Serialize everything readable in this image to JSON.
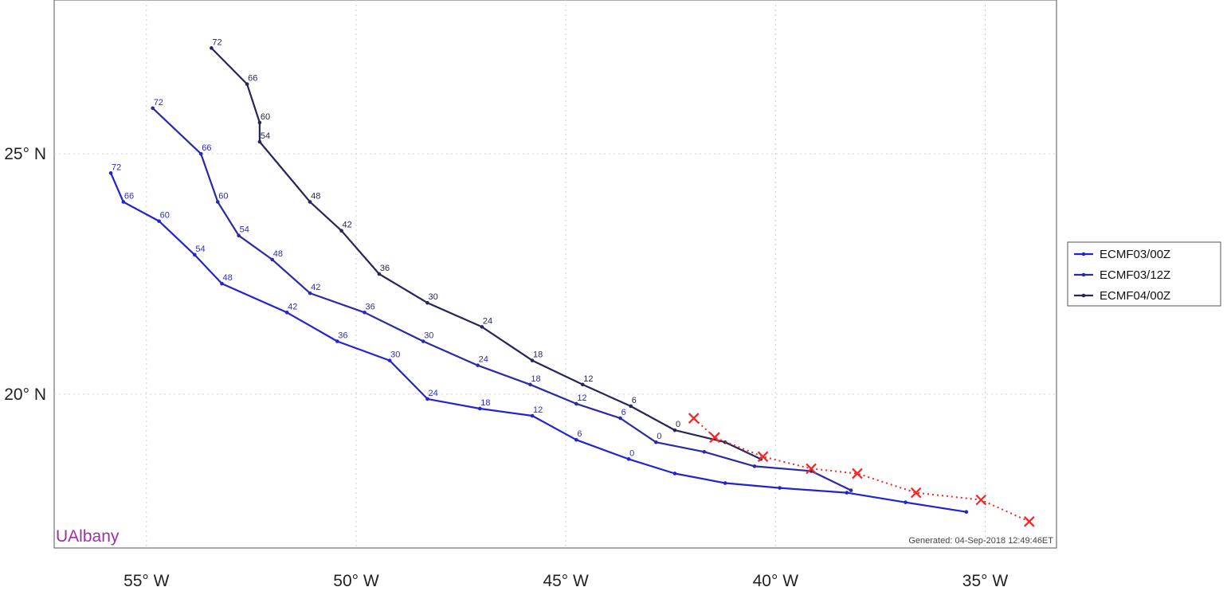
{
  "map": {
    "lon_range": [
      -57.2,
      -33.3
    ],
    "lat_range": [
      16.8,
      28.2
    ],
    "x_ticks": [
      {
        "value": -55,
        "label": "55° W"
      },
      {
        "value": -50,
        "label": "50° W"
      },
      {
        "value": -45,
        "label": "45° W"
      },
      {
        "value": -40,
        "label": "40° W"
      },
      {
        "value": -35,
        "label": "35° W"
      }
    ],
    "y_ticks": [
      {
        "value": 25,
        "label": "25° N"
      },
      {
        "value": 20,
        "label": "20° N"
      }
    ],
    "grid": true,
    "branding": {
      "text": "UAlbany",
      "color": "#9b30a8"
    },
    "generated": "Generated: 04-Sep-2018 12:49:46ET"
  },
  "chart_data": {
    "type": "scatter",
    "x_axis": "longitude",
    "y_axis": "latitude",
    "series": [
      {
        "name": "ECMF03/00Z",
        "color": "#2323d6",
        "hour_label_color": "#2b2bd6",
        "points": [
          {
            "lon": -35.45,
            "lat": 17.55,
            "hour": ""
          },
          {
            "lon": -36.9,
            "lat": 17.75,
            "hour": ""
          },
          {
            "lon": -38.3,
            "lat": 17.95,
            "hour": ""
          },
          {
            "lon": -39.9,
            "lat": 18.05,
            "hour": ""
          },
          {
            "lon": -41.2,
            "lat": 18.15,
            "hour": ""
          },
          {
            "lon": -42.4,
            "lat": 18.35,
            "hour": ""
          },
          {
            "lon": -43.5,
            "lat": 18.65,
            "hour": "0"
          },
          {
            "lon": -44.75,
            "lat": 19.05,
            "hour": "6"
          },
          {
            "lon": -45.8,
            "lat": 19.55,
            "hour": "12"
          },
          {
            "lon": -47.05,
            "lat": 19.7,
            "hour": "18"
          },
          {
            "lon": -48.3,
            "lat": 19.9,
            "hour": "24"
          },
          {
            "lon": -49.2,
            "lat": 20.7,
            "hour": "30"
          },
          {
            "lon": -50.45,
            "lat": 21.1,
            "hour": "36"
          },
          {
            "lon": -51.65,
            "lat": 21.7,
            "hour": "42"
          },
          {
            "lon": -53.2,
            "lat": 22.3,
            "hour": "48"
          },
          {
            "lon": -53.85,
            "lat": 22.9,
            "hour": "54"
          },
          {
            "lon": -54.7,
            "lat": 23.6,
            "hour": "60"
          },
          {
            "lon": -55.55,
            "lat": 24.0,
            "hour": "66"
          },
          {
            "lon": -55.85,
            "lat": 24.6,
            "hour": "72"
          }
        ]
      },
      {
        "name": "ECMF03/12Z",
        "color": "#2a2aa6",
        "hour_label_color": "#2b2bb8",
        "points": [
          {
            "lon": -38.2,
            "lat": 18.0,
            "hour": ""
          },
          {
            "lon": -39.15,
            "lat": 18.4,
            "hour": ""
          },
          {
            "lon": -40.5,
            "lat": 18.5,
            "hour": ""
          },
          {
            "lon": -41.7,
            "lat": 18.8,
            "hour": ""
          },
          {
            "lon": -42.85,
            "lat": 19.0,
            "hour": "0"
          },
          {
            "lon": -43.7,
            "lat": 19.5,
            "hour": "6"
          },
          {
            "lon": -44.75,
            "lat": 19.8,
            "hour": "12"
          },
          {
            "lon": -45.85,
            "lat": 20.2,
            "hour": "18"
          },
          {
            "lon": -47.1,
            "lat": 20.6,
            "hour": "24"
          },
          {
            "lon": -48.4,
            "lat": 21.1,
            "hour": "30"
          },
          {
            "lon": -49.8,
            "lat": 21.7,
            "hour": "36"
          },
          {
            "lon": -51.1,
            "lat": 22.1,
            "hour": "42"
          },
          {
            "lon": -52.0,
            "lat": 22.8,
            "hour": "48"
          },
          {
            "lon": -52.8,
            "lat": 23.3,
            "hour": "54"
          },
          {
            "lon": -53.3,
            "lat": 24.0,
            "hour": "60"
          },
          {
            "lon": -53.7,
            "lat": 25.0,
            "hour": "66"
          },
          {
            "lon": -54.85,
            "lat": 25.95,
            "hour": "72"
          }
        ]
      },
      {
        "name": "ECMF04/00Z",
        "color": "#262659",
        "hour_label_color": "#262650",
        "points": [
          {
            "lon": -40.35,
            "lat": 18.65,
            "hour": ""
          },
          {
            "lon": -41.2,
            "lat": 19.0,
            "hour": ""
          },
          {
            "lon": -42.4,
            "lat": 19.25,
            "hour": "0"
          },
          {
            "lon": -43.45,
            "lat": 19.75,
            "hour": "6"
          },
          {
            "lon": -44.6,
            "lat": 20.2,
            "hour": "12"
          },
          {
            "lon": -45.8,
            "lat": 20.7,
            "hour": "18"
          },
          {
            "lon": -47.0,
            "lat": 21.4,
            "hour": "24"
          },
          {
            "lon": -48.3,
            "lat": 21.9,
            "hour": "30"
          },
          {
            "lon": -49.45,
            "lat": 22.5,
            "hour": "36"
          },
          {
            "lon": -50.35,
            "lat": 23.4,
            "hour": "42"
          },
          {
            "lon": -51.1,
            "lat": 24.0,
            "hour": "48"
          },
          {
            "lon": -52.3,
            "lat": 25.25,
            "hour": "54"
          },
          {
            "lon": -52.3,
            "lat": 25.65,
            "hour": "60"
          },
          {
            "lon": -52.6,
            "lat": 26.45,
            "hour": "66"
          },
          {
            "lon": -53.45,
            "lat": 27.2,
            "hour": "72"
          }
        ]
      }
    ],
    "observed_track": {
      "color": "#ff2020",
      "line_style": "dotted",
      "marker": "x",
      "points": [
        {
          "lon": -33.95,
          "lat": 17.35
        },
        {
          "lon": -35.1,
          "lat": 17.8
        },
        {
          "lon": -36.65,
          "lat": 17.95
        },
        {
          "lon": -38.05,
          "lat": 18.35
        },
        {
          "lon": -39.15,
          "lat": 18.45
        },
        {
          "lon": -40.3,
          "lat": 18.7
        },
        {
          "lon": -41.45,
          "lat": 19.1
        },
        {
          "lon": -41.95,
          "lat": 19.5
        }
      ]
    },
    "legend": {
      "placement": "right",
      "entries": [
        "ECMF03/00Z",
        "ECMF03/12Z",
        "ECMF04/00Z"
      ]
    }
  }
}
